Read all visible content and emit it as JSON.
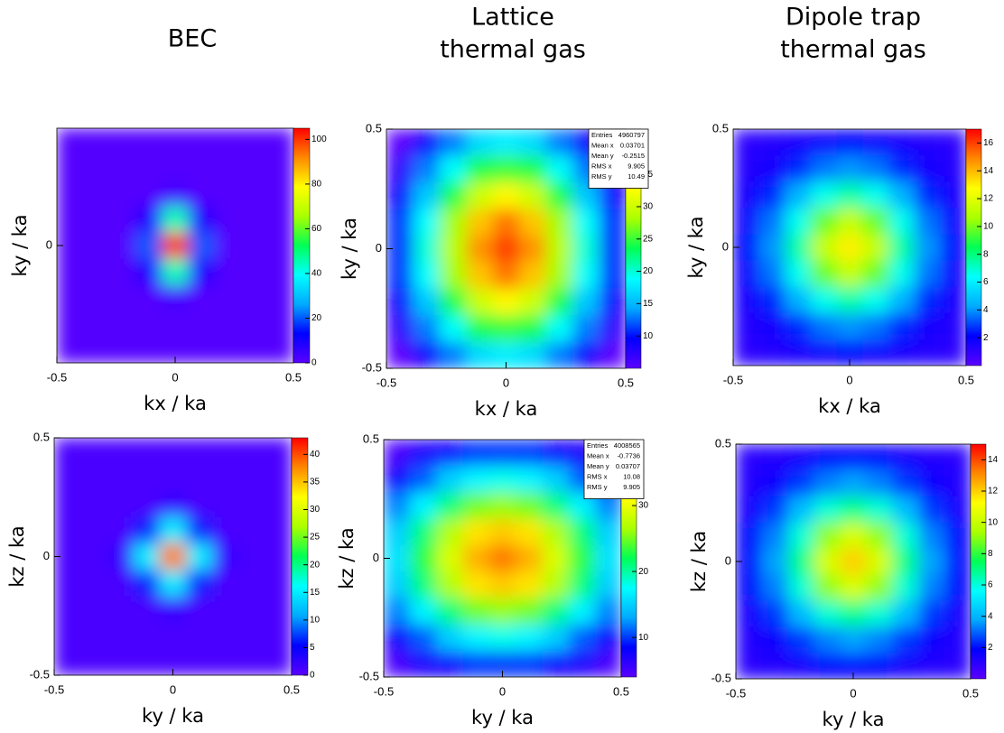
{
  "columns": [
    [
      "BEC"
    ],
    [
      "Lattice",
      "thermal gas"
    ],
    [
      "Dipole trap",
      "thermal gas"
    ]
  ],
  "palette": [
    "#5a00ff",
    "#0000ff",
    "#00aaff",
    "#00ffff",
    "#00ff55",
    "#aaff00",
    "#ffff00",
    "#ff8800",
    "#ff0000"
  ],
  "chart_data": [
    {
      "type": "heatmap",
      "xlabel": "kx / ka",
      "ylabel": "ky / ka",
      "xlim": [
        -0.5,
        0.5
      ],
      "ylim": [
        -0.5,
        0.5
      ],
      "xticks": [
        -0.5,
        0,
        0.5
      ],
      "yticks": [
        0
      ],
      "zlim": [
        0,
        105
      ],
      "zticks": [
        0,
        20,
        40,
        60,
        80,
        100
      ],
      "z": [
        [
          1,
          1,
          1,
          1,
          1,
          1,
          1,
          1,
          1
        ],
        [
          1,
          1,
          1,
          1,
          1,
          1,
          1,
          1,
          1
        ],
        [
          1,
          1,
          1,
          1,
          3,
          1,
          1,
          1,
          1
        ],
        [
          1,
          1,
          1,
          8,
          45,
          8,
          1,
          1,
          1
        ],
        [
          1,
          1,
          1,
          20,
          100,
          20,
          1,
          1,
          1
        ],
        [
          1,
          1,
          1,
          8,
          45,
          8,
          1,
          1,
          1
        ],
        [
          1,
          1,
          1,
          1,
          3,
          1,
          1,
          1,
          1
        ],
        [
          1,
          1,
          1,
          1,
          1,
          1,
          1,
          1,
          1
        ],
        [
          1,
          1,
          1,
          1,
          1,
          1,
          1,
          1,
          1
        ]
      ]
    },
    {
      "type": "heatmap",
      "xlabel": "kx / ka",
      "ylabel": "ky / ka",
      "xlim": [
        -0.5,
        0.5
      ],
      "ylim": [
        -0.5,
        0.5
      ],
      "xticks": [
        -0.5,
        0,
        0.5
      ],
      "yticks": [
        -0.5,
        0,
        0.5
      ],
      "zlim": [
        5,
        42
      ],
      "zticks": [
        10,
        15,
        20,
        25,
        30,
        35
      ],
      "z": [
        [
          5,
          9,
          13,
          17,
          18,
          17,
          13,
          9,
          5
        ],
        [
          7,
          13,
          19,
          24,
          25,
          24,
          19,
          13,
          7
        ],
        [
          9,
          16,
          24,
          30,
          33,
          30,
          24,
          16,
          9
        ],
        [
          11,
          19,
          28,
          35,
          38,
          35,
          28,
          19,
          11
        ],
        [
          11,
          20,
          29,
          37,
          40,
          37,
          29,
          20,
          11
        ],
        [
          11,
          19,
          28,
          35,
          38,
          35,
          28,
          19,
          11
        ],
        [
          9,
          16,
          24,
          30,
          33,
          30,
          24,
          16,
          9
        ],
        [
          7,
          13,
          19,
          24,
          25,
          24,
          19,
          13,
          7
        ],
        [
          5,
          9,
          13,
          17,
          18,
          17,
          13,
          9,
          5
        ]
      ],
      "stats": [
        {
          "label": "Entries",
          "value": 4960797
        },
        {
          "label": "Mean x",
          "value": 0.03701
        },
        {
          "label": "Mean y",
          "value": -0.2515
        },
        {
          "label": "RMS x",
          "value": 9.905
        },
        {
          "label": "RMS y",
          "value": 10.49
        }
      ]
    },
    {
      "type": "heatmap",
      "xlabel": "kx / ka",
      "ylabel": "ky / ka",
      "xlim": [
        -0.5,
        0.5
      ],
      "ylim": [
        -0.5,
        0.5
      ],
      "xticks": [
        -0.5,
        0,
        0.5
      ],
      "yticks": [
        0,
        0.5
      ],
      "zlim": [
        0,
        17
      ],
      "zticks": [
        2,
        4,
        6,
        8,
        10,
        12,
        14,
        16
      ],
      "z": [
        [
          1.1,
          1.3,
          1.6,
          1.9,
          2.0,
          1.9,
          1.6,
          1.3,
          1.1
        ],
        [
          1.3,
          1.7,
          2.6,
          3.6,
          4.0,
          3.6,
          2.6,
          1.7,
          1.3
        ],
        [
          1.6,
          2.6,
          4.5,
          6.6,
          7.5,
          6.6,
          4.5,
          2.6,
          1.6
        ],
        [
          1.9,
          3.6,
          6.6,
          9.8,
          11.3,
          9.8,
          6.6,
          3.6,
          1.9
        ],
        [
          2.0,
          4.0,
          7.5,
          11.3,
          13,
          11.3,
          7.5,
          4.0,
          2.0
        ],
        [
          1.9,
          3.6,
          6.6,
          9.8,
          11.3,
          9.8,
          6.6,
          3.6,
          1.9
        ],
        [
          1.6,
          2.6,
          4.5,
          6.6,
          7.5,
          6.6,
          4.5,
          2.6,
          1.6
        ],
        [
          1.3,
          1.7,
          2.6,
          3.6,
          4.0,
          3.6,
          2.6,
          1.7,
          1.3
        ],
        [
          1.1,
          1.3,
          1.6,
          1.9,
          2.0,
          1.9,
          1.6,
          1.3,
          1.1
        ]
      ]
    },
    {
      "type": "heatmap",
      "xlabel": "ky / ka",
      "ylabel": "kz / ka",
      "xlim": [
        -0.5,
        0.5
      ],
      "ylim": [
        -0.5,
        0.5
      ],
      "xticks": [
        -0.5,
        0,
        0.5
      ],
      "yticks": [
        -0.5,
        0,
        0.5
      ],
      "zlim": [
        0,
        43
      ],
      "zticks": [
        0,
        5,
        10,
        15,
        20,
        25,
        30,
        35,
        40
      ],
      "z": [
        [
          1,
          1,
          1,
          1,
          1,
          1,
          1,
          1,
          1
        ],
        [
          1,
          1,
          1,
          1,
          1,
          1,
          1,
          1,
          1
        ],
        [
          1,
          1,
          1,
          1,
          2,
          1,
          1,
          1,
          1
        ],
        [
          1,
          1,
          1,
          6.5,
          15,
          6.5,
          1,
          1,
          1
        ],
        [
          1,
          1,
          2,
          15,
          38,
          15,
          2,
          1,
          1
        ],
        [
          1,
          1,
          1,
          6.5,
          15,
          6.5,
          1,
          1,
          1
        ],
        [
          1,
          1,
          1,
          1,
          2,
          1,
          1,
          1,
          1
        ],
        [
          1,
          1,
          1,
          1,
          1,
          1,
          1,
          1,
          1
        ],
        [
          1,
          1,
          1,
          1,
          1,
          1,
          1,
          1,
          1
        ]
      ]
    },
    {
      "type": "heatmap",
      "xlabel": "ky / ka",
      "ylabel": "kz / ka",
      "xlim": [
        -0.5,
        0.5
      ],
      "ylim": [
        -0.5,
        0.5
      ],
      "xticks": [
        -0.5,
        0,
        0.5
      ],
      "yticks": [
        -0.5,
        0,
        0.5
      ],
      "zlim": [
        4,
        40
      ],
      "zticks": [
        10,
        20,
        30
      ],
      "z": [
        [
          5,
          7,
          8,
          10,
          10,
          10,
          8,
          7,
          5
        ],
        [
          8,
          11,
          15,
          17,
          18,
          17,
          15,
          11,
          8
        ],
        [
          12,
          17,
          21,
          25,
          26,
          25,
          21,
          17,
          12
        ],
        [
          15,
          21,
          27,
          32,
          33,
          32,
          27,
          21,
          15
        ],
        [
          16,
          23,
          29,
          34,
          36,
          34,
          29,
          23,
          16
        ],
        [
          15,
          21,
          27,
          32,
          33,
          32,
          27,
          21,
          15
        ],
        [
          12,
          17,
          21,
          25,
          26,
          25,
          21,
          17,
          12
        ],
        [
          8,
          11,
          15,
          17,
          18,
          17,
          15,
          11,
          8
        ],
        [
          5,
          7,
          8,
          10,
          10,
          10,
          8,
          7,
          5
        ]
      ],
      "stats": [
        {
          "label": "Entries",
          "value": 4008565
        },
        {
          "label": "Mean x",
          "value": -0.7736
        },
        {
          "label": "Mean y",
          "value": 0.03707
        },
        {
          "label": "RMS x",
          "value": 10.08
        },
        {
          "label": "RMS y",
          "value": 9.905
        }
      ]
    },
    {
      "type": "heatmap",
      "xlabel": "ky / ka",
      "ylabel": "kz / ka",
      "xlim": [
        -0.5,
        0.5
      ],
      "ylim": [
        -0.5,
        0.5
      ],
      "xticks": [
        -0.5,
        0,
        0.5
      ],
      "yticks": [
        -0.5,
        0,
        0.5
      ],
      "zlim": [
        0,
        15
      ],
      "zticks": [
        2,
        4,
        6,
        8,
        10,
        12,
        14
      ],
      "z": [
        [
          1.1,
          1.2,
          1.5,
          1.8,
          1.9,
          1.8,
          1.5,
          1.2,
          1.1
        ],
        [
          1.2,
          1.7,
          2.5,
          3.3,
          3.7,
          3.3,
          2.5,
          1.7,
          1.2
        ],
        [
          1.5,
          2.5,
          4.2,
          6.1,
          6.9,
          6.1,
          4.2,
          2.5,
          1.5
        ],
        [
          1.8,
          3.3,
          6.1,
          9.1,
          10.4,
          9.1,
          6.1,
          3.3,
          1.8
        ],
        [
          1.9,
          3.7,
          6.9,
          10.4,
          12,
          10.4,
          6.9,
          3.7,
          1.9
        ],
        [
          1.8,
          3.3,
          6.1,
          9.1,
          10.4,
          9.1,
          6.1,
          3.3,
          1.8
        ],
        [
          1.5,
          2.5,
          4.2,
          6.1,
          6.9,
          6.1,
          4.2,
          2.5,
          1.5
        ],
        [
          1.2,
          1.7,
          2.5,
          3.3,
          3.7,
          3.3,
          2.5,
          1.7,
          1.2
        ],
        [
          1.1,
          1.2,
          1.5,
          1.8,
          1.9,
          1.8,
          1.5,
          1.2,
          1.1
        ]
      ]
    }
  ]
}
